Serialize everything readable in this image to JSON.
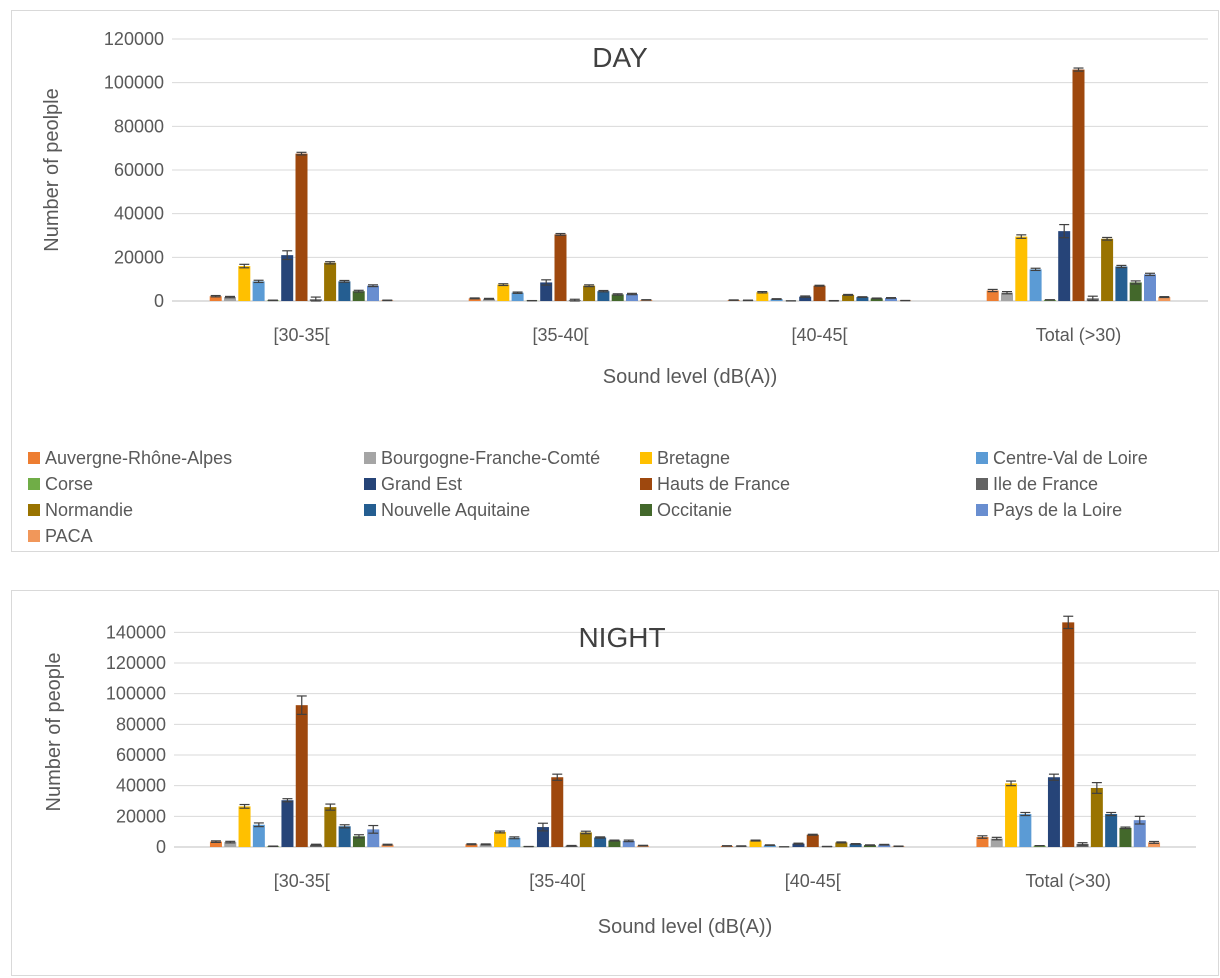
{
  "legend": [
    {
      "name": "Auvergne-Rhône-Alpes",
      "color": "#ED7D31"
    },
    {
      "name": "Bourgogne-Franche-Comté",
      "color": "#A5A5A5"
    },
    {
      "name": "Bretagne",
      "color": "#FFC000"
    },
    {
      "name": "Centre-Val de Loire",
      "color": "#5B9BD5"
    },
    {
      "name": "Corse",
      "color": "#70AD47"
    },
    {
      "name": "Grand Est",
      "color": "#264478"
    },
    {
      "name": "Hauts de France",
      "color": "#9E480E"
    },
    {
      "name": "Ile de France",
      "color": "#636363"
    },
    {
      "name": "Normandie",
      "color": "#997300"
    },
    {
      "name": "Nouvelle Aquitaine",
      "color": "#255E91"
    },
    {
      "name": "Occitanie",
      "color": "#43682B"
    },
    {
      "name": "Pays de la Loire",
      "color": "#698ED0"
    },
    {
      "name": "PACA",
      "color": "#F1975A"
    }
  ],
  "chart_data": [
    {
      "type": "bar",
      "title": "DAY",
      "xlabel": "Sound level (dB(A))",
      "ylabel": "Number of peolple",
      "ylim": [
        0,
        120000
      ],
      "yticks": [
        0,
        20000,
        40000,
        60000,
        80000,
        100000,
        120000
      ],
      "grid": true,
      "legend_position": "bottom",
      "categories": [
        "[30-35[",
        "[35-40[",
        "[40-45[",
        "Total (>30)"
      ],
      "series": [
        {
          "name": "Auvergne-Rhône-Alpes",
          "values": [
            2200,
            1200,
            400,
            4800
          ],
          "errors": [
            300,
            200,
            100,
            500
          ]
        },
        {
          "name": "Bourgogne-Franche-Comté",
          "values": [
            1800,
            1000,
            300,
            3800
          ],
          "errors": [
            300,
            200,
            100,
            500
          ]
        },
        {
          "name": "Bretagne",
          "values": [
            16000,
            7500,
            4000,
            29500
          ],
          "errors": [
            800,
            400,
            300,
            800
          ]
        },
        {
          "name": "Centre-Val de Loire",
          "values": [
            9000,
            3800,
            900,
            14500
          ],
          "errors": [
            500,
            300,
            150,
            500
          ]
        },
        {
          "name": "Corse",
          "values": [
            300,
            150,
            50,
            500
          ],
          "errors": [
            100,
            50,
            30,
            100
          ]
        },
        {
          "name": "Grand Est",
          "values": [
            21000,
            8500,
            2000,
            32000
          ],
          "errors": [
            2000,
            1200,
            300,
            3000
          ]
        },
        {
          "name": "Hauts de France",
          "values": [
            67500,
            30500,
            7000,
            106000
          ],
          "errors": [
            600,
            400,
            200,
            700
          ]
        },
        {
          "name": "Ile de France",
          "values": [
            800,
            400,
            100,
            1200
          ],
          "errors": [
            1000,
            400,
            100,
            1000
          ]
        },
        {
          "name": "Normandie",
          "values": [
            17500,
            7000,
            2800,
            28500
          ],
          "errors": [
            500,
            400,
            200,
            600
          ]
        },
        {
          "name": "Nouvelle Aquitaine",
          "values": [
            9000,
            4500,
            1800,
            15800
          ],
          "errors": [
            400,
            300,
            150,
            500
          ]
        },
        {
          "name": "Occitanie",
          "values": [
            4500,
            3000,
            1200,
            8500
          ],
          "errors": [
            400,
            300,
            150,
            700
          ]
        },
        {
          "name": "Pays de la Loire",
          "values": [
            7000,
            3200,
            1400,
            12200
          ],
          "errors": [
            400,
            300,
            150,
            500
          ]
        },
        {
          "name": "PACA",
          "values": [
            300,
            500,
            200,
            1800
          ],
          "errors": [
            100,
            100,
            50,
            200
          ]
        }
      ]
    },
    {
      "type": "bar",
      "title": "NIGHT",
      "xlabel": "Sound level (dB(A))",
      "ylabel": "Number of people",
      "ylim": [
        0,
        150000
      ],
      "yticks": [
        0,
        20000,
        40000,
        60000,
        80000,
        100000,
        120000,
        140000
      ],
      "grid": true,
      "categories": [
        "[30-35[",
        "[35-40[",
        "[40-45[",
        "Total (>30)"
      ],
      "series": [
        {
          "name": "Auvergne-Rhône-Alpes",
          "values": [
            3500,
            1800,
            700,
            6500
          ],
          "errors": [
            500,
            300,
            150,
            800
          ]
        },
        {
          "name": "Bourgogne-Franche-Comté",
          "values": [
            3200,
            1700,
            600,
            5500
          ],
          "errors": [
            500,
            300,
            150,
            800
          ]
        },
        {
          "name": "Bretagne",
          "values": [
            26500,
            9800,
            4200,
            41500
          ],
          "errors": [
            1200,
            600,
            300,
            1500
          ]
        },
        {
          "name": "Centre-Val de Loire",
          "values": [
            14500,
            6000,
            1200,
            21500
          ],
          "errors": [
            1200,
            600,
            200,
            1000
          ]
        },
        {
          "name": "Corse",
          "values": [
            500,
            300,
            100,
            800
          ],
          "errors": [
            100,
            50,
            30,
            100
          ]
        },
        {
          "name": "Grand Est",
          "values": [
            30500,
            13000,
            2200,
            45500
          ],
          "errors": [
            1000,
            2500,
            300,
            2000
          ]
        },
        {
          "name": "Hauts de France",
          "values": [
            92500,
            45500,
            8000,
            146500
          ],
          "errors": [
            6000,
            2000,
            300,
            4000
          ]
        },
        {
          "name": "Ile de France",
          "values": [
            1500,
            800,
            300,
            2000
          ],
          "errors": [
            300,
            200,
            100,
            800
          ]
        },
        {
          "name": "Normandie",
          "values": [
            26000,
            9500,
            3000,
            38500
          ],
          "errors": [
            2000,
            800,
            300,
            3500
          ]
        },
        {
          "name": "Nouvelle Aquitaine",
          "values": [
            13500,
            6200,
            2000,
            21500
          ],
          "errors": [
            1000,
            400,
            200,
            1000
          ]
        },
        {
          "name": "Occitanie",
          "values": [
            7000,
            4200,
            1200,
            12500
          ],
          "errors": [
            1000,
            300,
            200,
            500
          ]
        },
        {
          "name": "Pays de la Loire",
          "values": [
            11500,
            4000,
            1500,
            17500
          ],
          "errors": [
            2500,
            500,
            200,
            2500
          ]
        },
        {
          "name": "PACA",
          "values": [
            1500,
            900,
            500,
            3000
          ],
          "errors": [
            300,
            200,
            100,
            600
          ]
        }
      ]
    }
  ]
}
